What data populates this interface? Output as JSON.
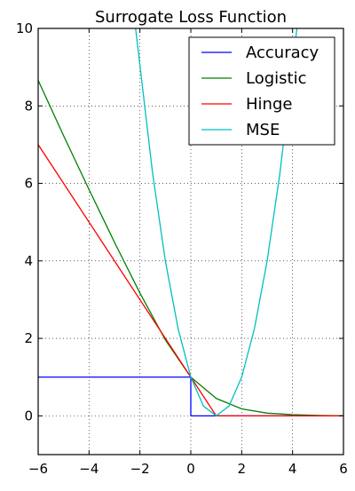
{
  "chart_data": {
    "type": "line",
    "title": "Surrogate Loss Function",
    "xlabel": "",
    "ylabel": "",
    "xlim": [
      -6,
      6
    ],
    "ylim": [
      -1,
      10
    ],
    "xticks": [
      -6,
      -4,
      -2,
      0,
      2,
      4,
      6
    ],
    "yticks": [
      0,
      2,
      4,
      6,
      8,
      10
    ],
    "x_tick_labels": [
      "−6",
      "−4",
      "−2",
      "0",
      "2",
      "4",
      "6"
    ],
    "y_tick_labels": [
      "0",
      "2",
      "4",
      "6",
      "8",
      "10"
    ],
    "grid": true,
    "legend_position": "top-right",
    "series": [
      {
        "name": "Accuracy",
        "color": "#0000ff",
        "x": [
          -6,
          0,
          0,
          6
        ],
        "y": [
          1,
          1,
          0,
          0
        ]
      },
      {
        "name": "Logistic",
        "color": "#008000",
        "x": [
          -6,
          -5,
          -4,
          -3,
          -2,
          -1,
          0,
          1,
          2,
          3,
          4,
          5,
          6
        ],
        "y": [
          8.66,
          7.23,
          5.84,
          4.48,
          3.17,
          1.96,
          1.0,
          0.45,
          0.18,
          0.07,
          0.03,
          0.01,
          0.0
        ]
      },
      {
        "name": "Hinge",
        "color": "#ff0000",
        "x": [
          -6,
          1,
          6
        ],
        "y": [
          7,
          0,
          0
        ]
      },
      {
        "name": "MSE",
        "color": "#00bfbf",
        "x": [
          -2.17,
          -1.5,
          -1,
          -0.5,
          0,
          0.5,
          1,
          1.5,
          2,
          2.5,
          3,
          3.5,
          4.17
        ],
        "y": [
          10.0,
          6.25,
          4,
          2.25,
          1,
          0.25,
          0,
          0.25,
          1,
          2.25,
          4,
          6.25,
          10.0
        ]
      }
    ]
  }
}
